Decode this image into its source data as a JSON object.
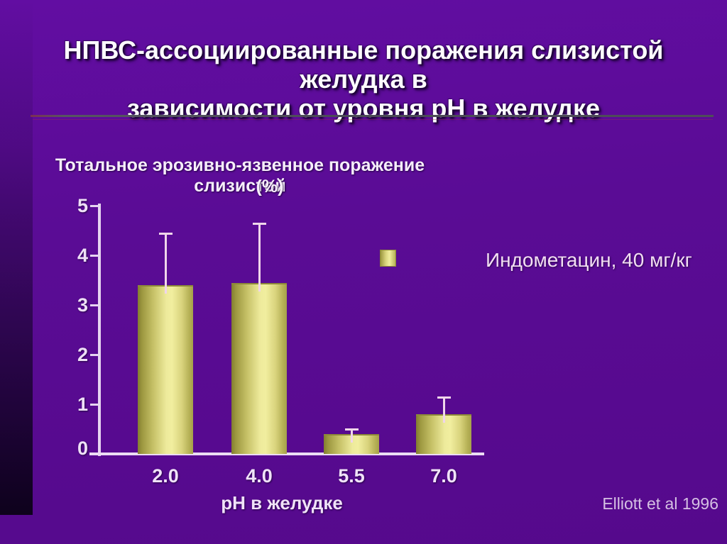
{
  "slide": {
    "title_line1": "НПВС-ассоциированные поражения слизистой желудка в",
    "title_line2": "зависимости от уровня рН в желудке",
    "citation": "Elliott et al 1996"
  },
  "chart_data": {
    "type": "bar",
    "title_line1": "Тотальное эрозивно-язвенное поражение слизистой",
    "title_line2": "(%)",
    "categories": [
      "2.0",
      "4.0",
      "5.5",
      "7.0"
    ],
    "values": [
      3.4,
      3.45,
      0.4,
      0.8
    ],
    "errors_plus": [
      1.05,
      1.2,
      0.1,
      0.35
    ],
    "series_name": "Индометацин, 40 мг/кг",
    "xlabel": "рН в желудке",
    "ylabel": "",
    "ylim": [
      0,
      5
    ],
    "yticks": [
      0,
      1,
      2,
      3,
      4,
      5
    ],
    "legend_position": "right",
    "grid": false,
    "colors": {
      "background": "#5A0C95",
      "bar_fill": "#EDE98F",
      "bar_edge": "#8D8838",
      "axis": "#E6D4F0",
      "error_bar": "#F0D6EA",
      "text": "#F0E2F8"
    }
  }
}
